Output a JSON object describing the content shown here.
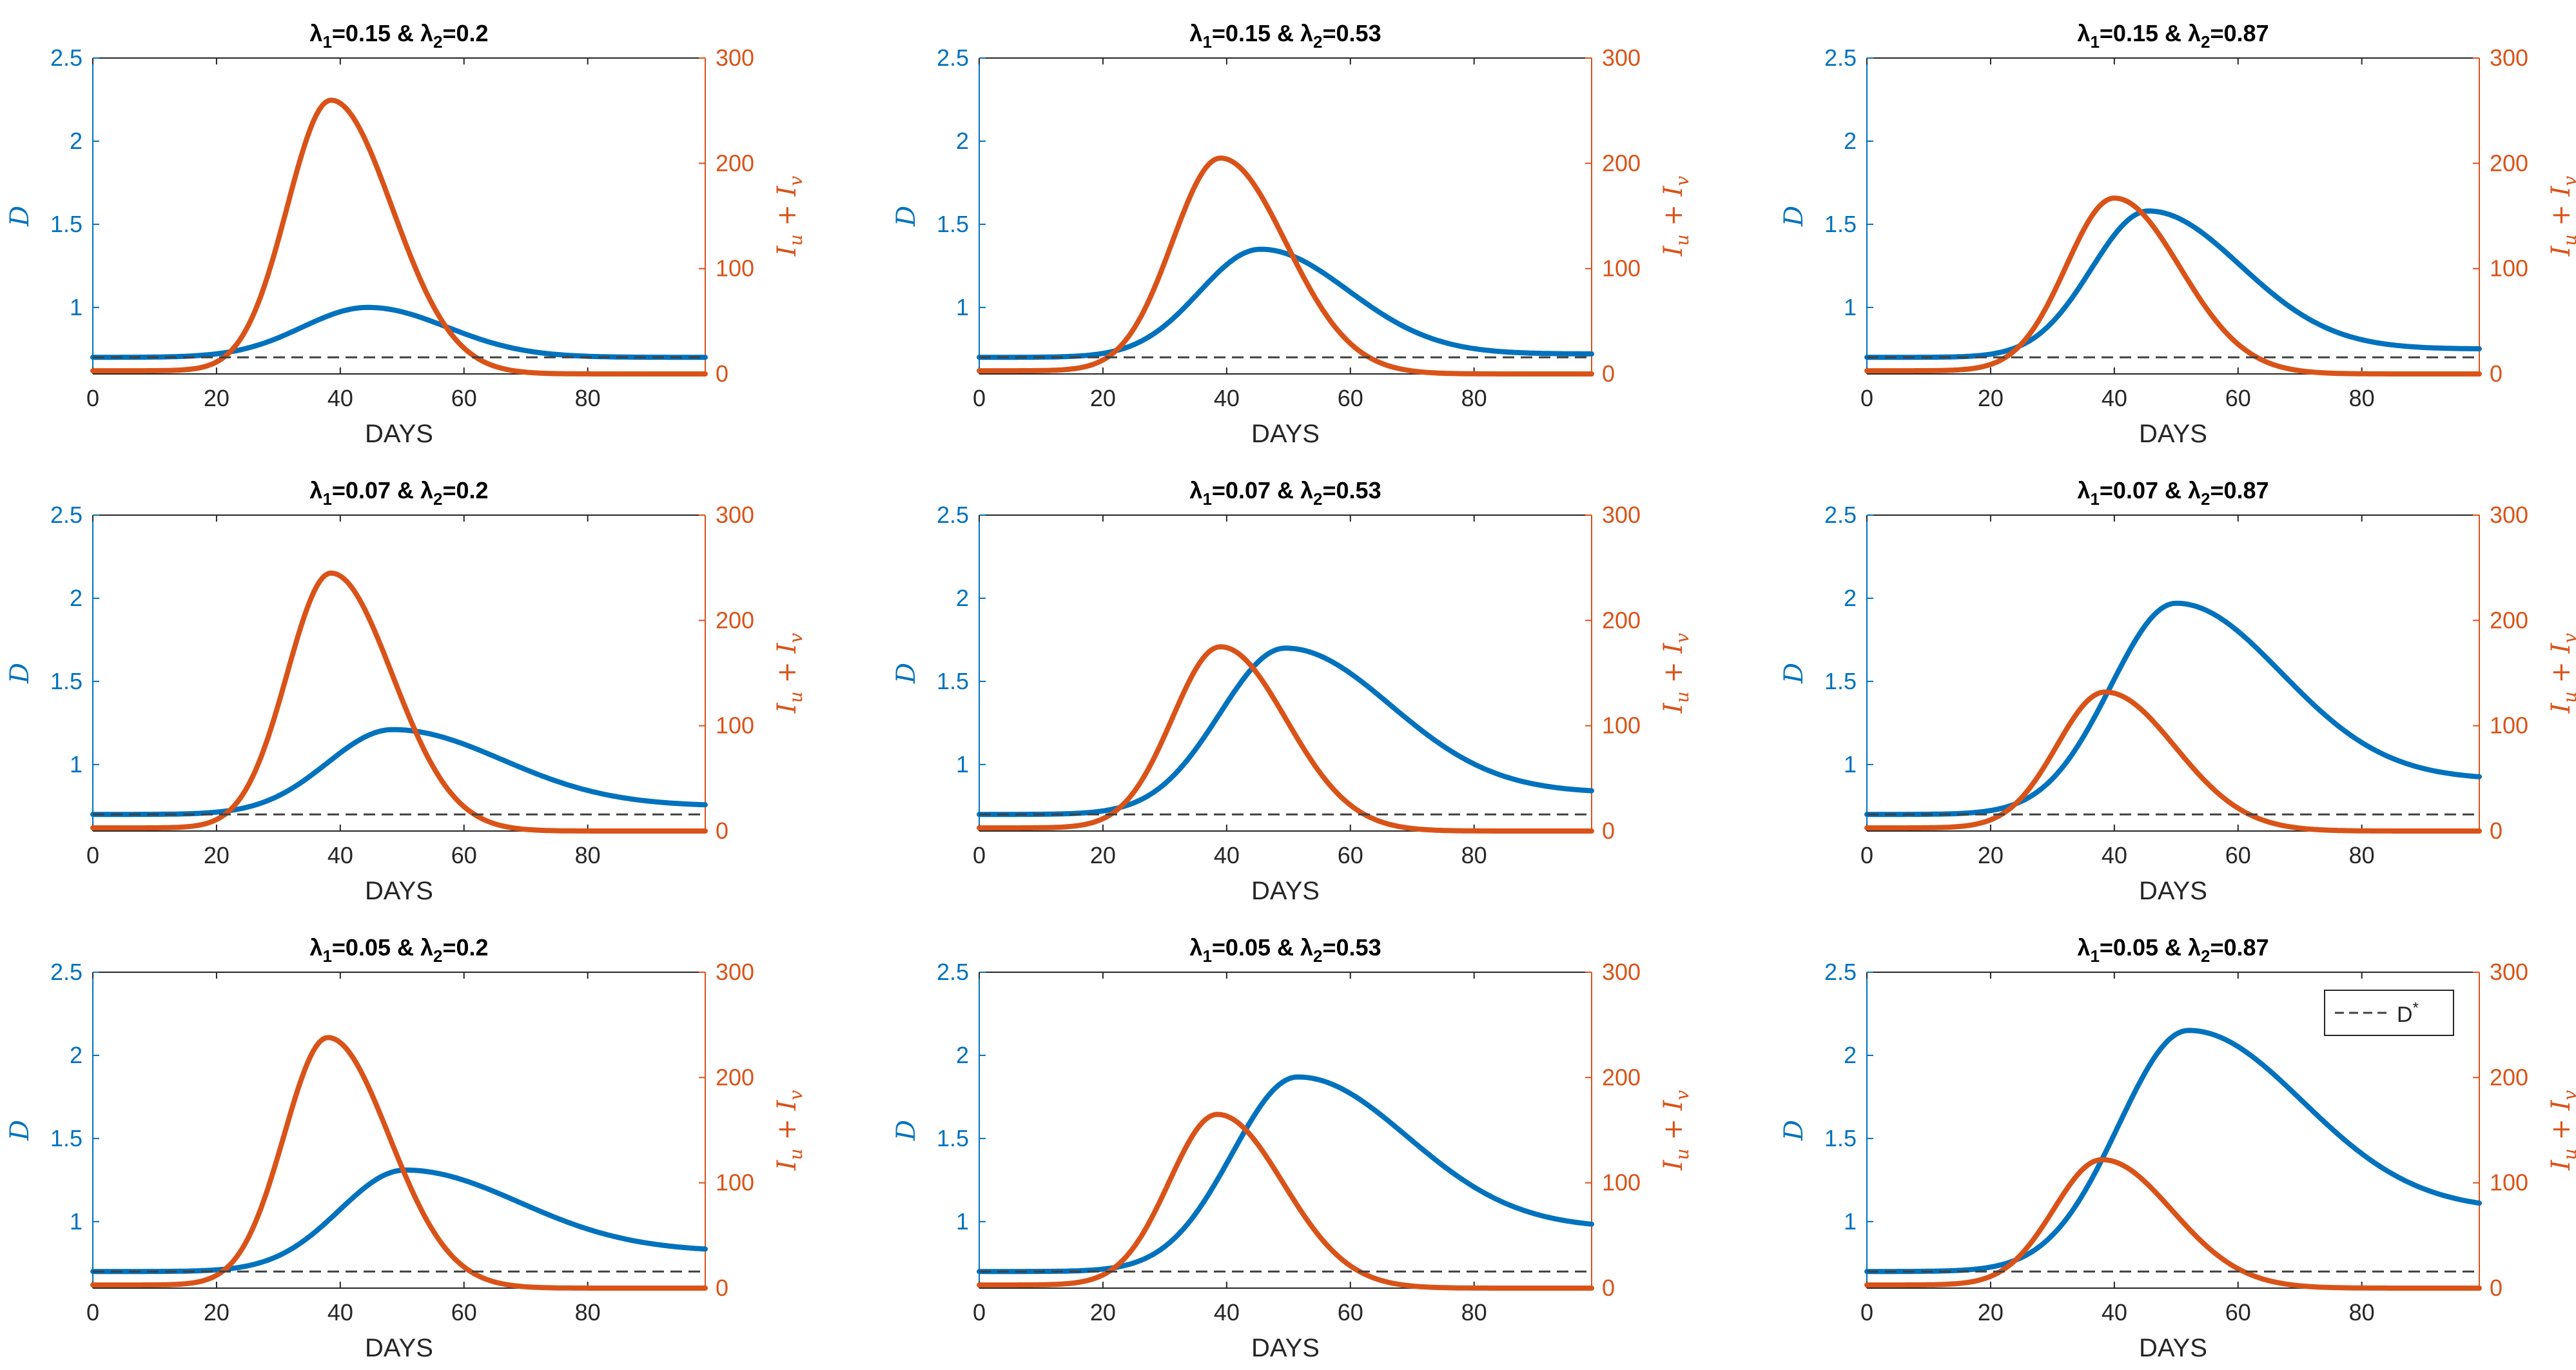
{
  "figure_colors": {
    "d_series": "#0072BD",
    "i_series": "#D95319",
    "d_star_line": "#404040",
    "axis_box": "#262626"
  },
  "chart_data": [
    {
      "type": "line",
      "title": "λ1=0.15 & λ2=0.2",
      "title_parts": {
        "l1_sym": "λ",
        "l1_sub": "1",
        "l1_val": "=0.15 & ",
        "l2_sym": "λ",
        "l2_sub": "2",
        "l2_val": "=0.2"
      },
      "xlabel": "DAYS",
      "ylabel_left": "D",
      "ylabel_right": "I_u + I_v",
      "ylabel_right_parts": {
        "a": "I",
        "a_sub": "u",
        "op": " + ",
        "b": "I",
        "b_sub": "v"
      },
      "xlim": [
        0,
        99
      ],
      "ylim_left": [
        0.6,
        2.5
      ],
      "ylim_right": [
        0,
        300
      ],
      "xticks": [
        0,
        20,
        40,
        60,
        80
      ],
      "yticks_left": [
        1,
        1.5,
        2,
        2.5
      ],
      "yticks_right": [
        0,
        100,
        200,
        300
      ],
      "grid": false,
      "series": [
        {
          "name": "D",
          "axis": "left",
          "base": 0.7,
          "peak": 1.0,
          "peak_x": 44.5,
          "width_left": 15,
          "width_right": 18,
          "end": 0.7
        },
        {
          "name": "I_u + I_v",
          "axis": "right",
          "base": 3,
          "peak": 260,
          "peak_x": 38.5,
          "width_left": 10,
          "width_right": 14,
          "end": 0
        },
        {
          "name": "D*",
          "axis": "left",
          "style": "dashed",
          "value": 0.7
        }
      ]
    },
    {
      "type": "line",
      "title": "λ1=0.15 & λ2=0.53",
      "title_parts": {
        "l1_sym": "λ",
        "l1_sub": "1",
        "l1_val": "=0.15 & ",
        "l2_sym": "λ",
        "l2_sub": "2",
        "l2_val": "=0.53"
      },
      "xlabel": "DAYS",
      "ylabel_left": "D",
      "ylabel_right": "I_u + I_v",
      "ylabel_right_parts": {
        "a": "I",
        "a_sub": "u",
        "op": " + ",
        "b": "I",
        "b_sub": "v"
      },
      "xlim": [
        0,
        99
      ],
      "ylim_left": [
        0.6,
        2.5
      ],
      "ylim_right": [
        0,
        300
      ],
      "xticks": [
        0,
        20,
        40,
        60,
        80
      ],
      "yticks_left": [
        1,
        1.5,
        2,
        2.5
      ],
      "yticks_right": [
        0,
        100,
        200,
        300
      ],
      "grid": false,
      "series": [
        {
          "name": "D",
          "axis": "left",
          "base": 0.7,
          "peak": 1.35,
          "peak_x": 45.5,
          "width_left": 14,
          "width_right": 20,
          "end": 0.72
        },
        {
          "name": "I_u + I_v",
          "axis": "right",
          "base": 3,
          "peak": 205,
          "peak_x": 39,
          "width_left": 11,
          "width_right": 15,
          "end": 0
        },
        {
          "name": "D*",
          "axis": "left",
          "style": "dashed",
          "value": 0.7
        }
      ]
    },
    {
      "type": "line",
      "title": "λ1=0.15 & λ2=0.87",
      "title_parts": {
        "l1_sym": "λ",
        "l1_sub": "1",
        "l1_val": "=0.15 & ",
        "l2_sym": "λ",
        "l2_sub": "2",
        "l2_val": "=0.87"
      },
      "xlabel": "DAYS",
      "ylabel_left": "D",
      "ylabel_right": "I_u + I_v",
      "ylabel_right_parts": {
        "a": "I",
        "a_sub": "u",
        "op": " + ",
        "b": "I",
        "b_sub": "v"
      },
      "xlim": [
        0,
        99
      ],
      "ylim_left": [
        0.6,
        2.5
      ],
      "ylim_right": [
        0,
        300
      ],
      "xticks": [
        0,
        20,
        40,
        60,
        80
      ],
      "yticks_left": [
        1,
        1.5,
        2,
        2.5
      ],
      "yticks_right": [
        0,
        100,
        200,
        300
      ],
      "grid": false,
      "series": [
        {
          "name": "D",
          "axis": "left",
          "base": 0.7,
          "peak": 1.58,
          "peak_x": 45.5,
          "width_left": 13,
          "width_right": 21,
          "end": 0.75
        },
        {
          "name": "I_u + I_v",
          "axis": "right",
          "base": 3,
          "peak": 167,
          "peak_x": 40,
          "width_left": 11,
          "width_right": 15,
          "end": 0
        },
        {
          "name": "D*",
          "axis": "left",
          "style": "dashed",
          "value": 0.7
        }
      ]
    },
    {
      "type": "line",
      "title": "λ1=0.07 & λ2=0.2",
      "title_parts": {
        "l1_sym": "λ",
        "l1_sub": "1",
        "l1_val": "=0.07 & ",
        "l2_sym": "λ",
        "l2_sub": "2",
        "l2_val": "=0.2"
      },
      "xlabel": "DAYS",
      "ylabel_left": "D",
      "ylabel_right": "I_u + I_v",
      "ylabel_right_parts": {
        "a": "I",
        "a_sub": "u",
        "op": " + ",
        "b": "I",
        "b_sub": "v"
      },
      "xlim": [
        0,
        99
      ],
      "ylim_left": [
        0.6,
        2.5
      ],
      "ylim_right": [
        0,
        300
      ],
      "xticks": [
        0,
        20,
        40,
        60,
        80
      ],
      "yticks_left": [
        1,
        1.5,
        2,
        2.5
      ],
      "yticks_right": [
        0,
        100,
        200,
        300
      ],
      "grid": false,
      "series": [
        {
          "name": "D",
          "axis": "left",
          "base": 0.7,
          "peak": 1.21,
          "peak_x": 48.5,
          "width_left": 15,
          "width_right": 25,
          "end": 0.75
        },
        {
          "name": "I_u + I_v",
          "axis": "right",
          "base": 3,
          "peak": 245,
          "peak_x": 38.5,
          "width_left": 10,
          "width_right": 14,
          "end": 0
        },
        {
          "name": "D*",
          "axis": "left",
          "style": "dashed",
          "value": 0.7
        }
      ]
    },
    {
      "type": "line",
      "title": "λ1=0.07 & λ2=0.53",
      "title_parts": {
        "l1_sym": "λ",
        "l1_sub": "1",
        "l1_val": "=0.07 & ",
        "l2_sym": "λ",
        "l2_sub": "2",
        "l2_val": "=0.53"
      },
      "xlabel": "DAYS",
      "ylabel_left": "D",
      "ylabel_right": "I_u + I_v",
      "ylabel_right_parts": {
        "a": "I",
        "a_sub": "u",
        "op": " + ",
        "b": "I",
        "b_sub": "v"
      },
      "xlim": [
        0,
        99
      ],
      "ylim_left": [
        0.6,
        2.5
      ],
      "ylim_right": [
        0,
        300
      ],
      "xticks": [
        0,
        20,
        40,
        60,
        80
      ],
      "yticks_left": [
        1,
        1.5,
        2,
        2.5
      ],
      "yticks_right": [
        0,
        100,
        200,
        300
      ],
      "grid": false,
      "series": [
        {
          "name": "D",
          "axis": "left",
          "base": 0.7,
          "peak": 1.7,
          "peak_x": 49.5,
          "width_left": 15,
          "width_right": 24,
          "end": 0.83
        },
        {
          "name": "I_u + I_v",
          "axis": "right",
          "base": 3,
          "peak": 175,
          "peak_x": 39,
          "width_left": 11,
          "width_right": 15,
          "end": 0
        },
        {
          "name": "D*",
          "axis": "left",
          "style": "dashed",
          "value": 0.7
        }
      ]
    },
    {
      "type": "line",
      "title": "λ1=0.07 & λ2=0.87",
      "title_parts": {
        "l1_sym": "λ",
        "l1_sub": "1",
        "l1_val": "=0.07 & ",
        "l2_sym": "λ",
        "l2_sub": "2",
        "l2_val": "=0.87"
      },
      "xlabel": "DAYS",
      "ylabel_left": "D",
      "ylabel_right": "I_u + I_v",
      "ylabel_right_parts": {
        "a": "I",
        "a_sub": "u",
        "op": " + ",
        "b": "I",
        "b_sub": "v"
      },
      "xlim": [
        0,
        99
      ],
      "ylim_left": [
        0.6,
        2.5
      ],
      "ylim_right": [
        0,
        300
      ],
      "xticks": [
        0,
        20,
        40,
        60,
        80
      ],
      "yticks_left": [
        1,
        1.5,
        2,
        2.5
      ],
      "yticks_right": [
        0,
        100,
        200,
        300
      ],
      "grid": false,
      "series": [
        {
          "name": "D",
          "axis": "left",
          "base": 0.7,
          "peak": 1.97,
          "peak_x": 50,
          "width_left": 15,
          "width_right": 24,
          "end": 0.91
        },
        {
          "name": "I_u + I_v",
          "axis": "right",
          "base": 3,
          "peak": 132,
          "peak_x": 38.5,
          "width_left": 11,
          "width_right": 16,
          "end": 0
        },
        {
          "name": "D*",
          "axis": "left",
          "style": "dashed",
          "value": 0.7
        }
      ]
    },
    {
      "type": "line",
      "title": "λ1=0.05 & λ2=0.2",
      "title_parts": {
        "l1_sym": "λ",
        "l1_sub": "1",
        "l1_val": "=0.05 & ",
        "l2_sym": "λ",
        "l2_sub": "2",
        "l2_val": "=0.2"
      },
      "xlabel": "DAYS",
      "ylabel_left": "D",
      "ylabel_right": "I_u + I_v",
      "ylabel_right_parts": {
        "a": "I",
        "a_sub": "u",
        "op": " + ",
        "b": "I",
        "b_sub": "v"
      },
      "xlim": [
        0,
        99
      ],
      "ylim_left": [
        0.6,
        2.5
      ],
      "ylim_right": [
        0,
        300
      ],
      "xticks": [
        0,
        20,
        40,
        60,
        80
      ],
      "yticks_left": [
        1,
        1.5,
        2,
        2.5
      ],
      "yticks_right": [
        0,
        100,
        200,
        300
      ],
      "grid": false,
      "series": [
        {
          "name": "D",
          "axis": "left",
          "base": 0.7,
          "peak": 1.31,
          "peak_x": 50.5,
          "width_left": 15,
          "width_right": 26,
          "end": 0.82
        },
        {
          "name": "I_u + I_v",
          "axis": "right",
          "base": 3,
          "peak": 238,
          "peak_x": 38,
          "width_left": 10,
          "width_right": 14,
          "end": 0
        },
        {
          "name": "D*",
          "axis": "left",
          "style": "dashed",
          "value": 0.7
        }
      ]
    },
    {
      "type": "line",
      "title": "λ1=0.05 & λ2=0.53",
      "title_parts": {
        "l1_sym": "λ",
        "l1_sub": "1",
        "l1_val": "=0.05 & ",
        "l2_sym": "λ",
        "l2_sub": "2",
        "l2_val": "=0.53"
      },
      "xlabel": "DAYS",
      "ylabel_left": "D",
      "ylabel_right": "I_u + I_v",
      "ylabel_right_parts": {
        "a": "I",
        "a_sub": "u",
        "op": " + ",
        "b": "I",
        "b_sub": "v"
      },
      "xlim": [
        0,
        99
      ],
      "ylim_left": [
        0.6,
        2.5
      ],
      "ylim_right": [
        0,
        300
      ],
      "xticks": [
        0,
        20,
        40,
        60,
        80
      ],
      "yticks_left": [
        1,
        1.5,
        2,
        2.5
      ],
      "yticks_right": [
        0,
        100,
        200,
        300
      ],
      "grid": false,
      "series": [
        {
          "name": "D",
          "axis": "left",
          "base": 0.7,
          "peak": 1.87,
          "peak_x": 51.5,
          "width_left": 15,
          "width_right": 25,
          "end": 0.96
        },
        {
          "name": "I_u + I_v",
          "axis": "right",
          "base": 3,
          "peak": 165,
          "peak_x": 38.5,
          "width_left": 11,
          "width_right": 15,
          "end": 0
        },
        {
          "name": "D*",
          "axis": "left",
          "style": "dashed",
          "value": 0.7
        }
      ]
    },
    {
      "type": "line",
      "title": "λ1=0.05 & λ2=0.87",
      "title_parts": {
        "l1_sym": "λ",
        "l1_sub": "1",
        "l1_val": "=0.05 & ",
        "l2_sym": "λ",
        "l2_sub": "2",
        "l2_val": "=0.87"
      },
      "xlabel": "DAYS",
      "ylabel_left": "D",
      "ylabel_right": "I_u + I_v",
      "ylabel_right_parts": {
        "a": "I",
        "a_sub": "u",
        "op": " + ",
        "b": "I",
        "b_sub": "v"
      },
      "xlim": [
        0,
        99
      ],
      "ylim_left": [
        0.6,
        2.5
      ],
      "ylim_right": [
        0,
        300
      ],
      "xticks": [
        0,
        20,
        40,
        60,
        80
      ],
      "yticks_left": [
        1,
        1.5,
        2,
        2.5
      ],
      "yticks_right": [
        0,
        100,
        200,
        300
      ],
      "grid": false,
      "legend": {
        "location": "top-right",
        "entries": [
          {
            "label": "D",
            "sup": "*",
            "style": "dashed"
          }
        ]
      },
      "series": [
        {
          "name": "D",
          "axis": "left",
          "base": 0.7,
          "peak": 2.15,
          "peak_x": 52,
          "width_left": 16,
          "width_right": 26,
          "end": 1.07
        },
        {
          "name": "I_u + I_v",
          "axis": "right",
          "base": 3,
          "peak": 122,
          "peak_x": 38,
          "width_left": 11,
          "width_right": 16,
          "end": 0
        },
        {
          "name": "D*",
          "axis": "left",
          "style": "dashed",
          "value": 0.7
        }
      ]
    }
  ]
}
